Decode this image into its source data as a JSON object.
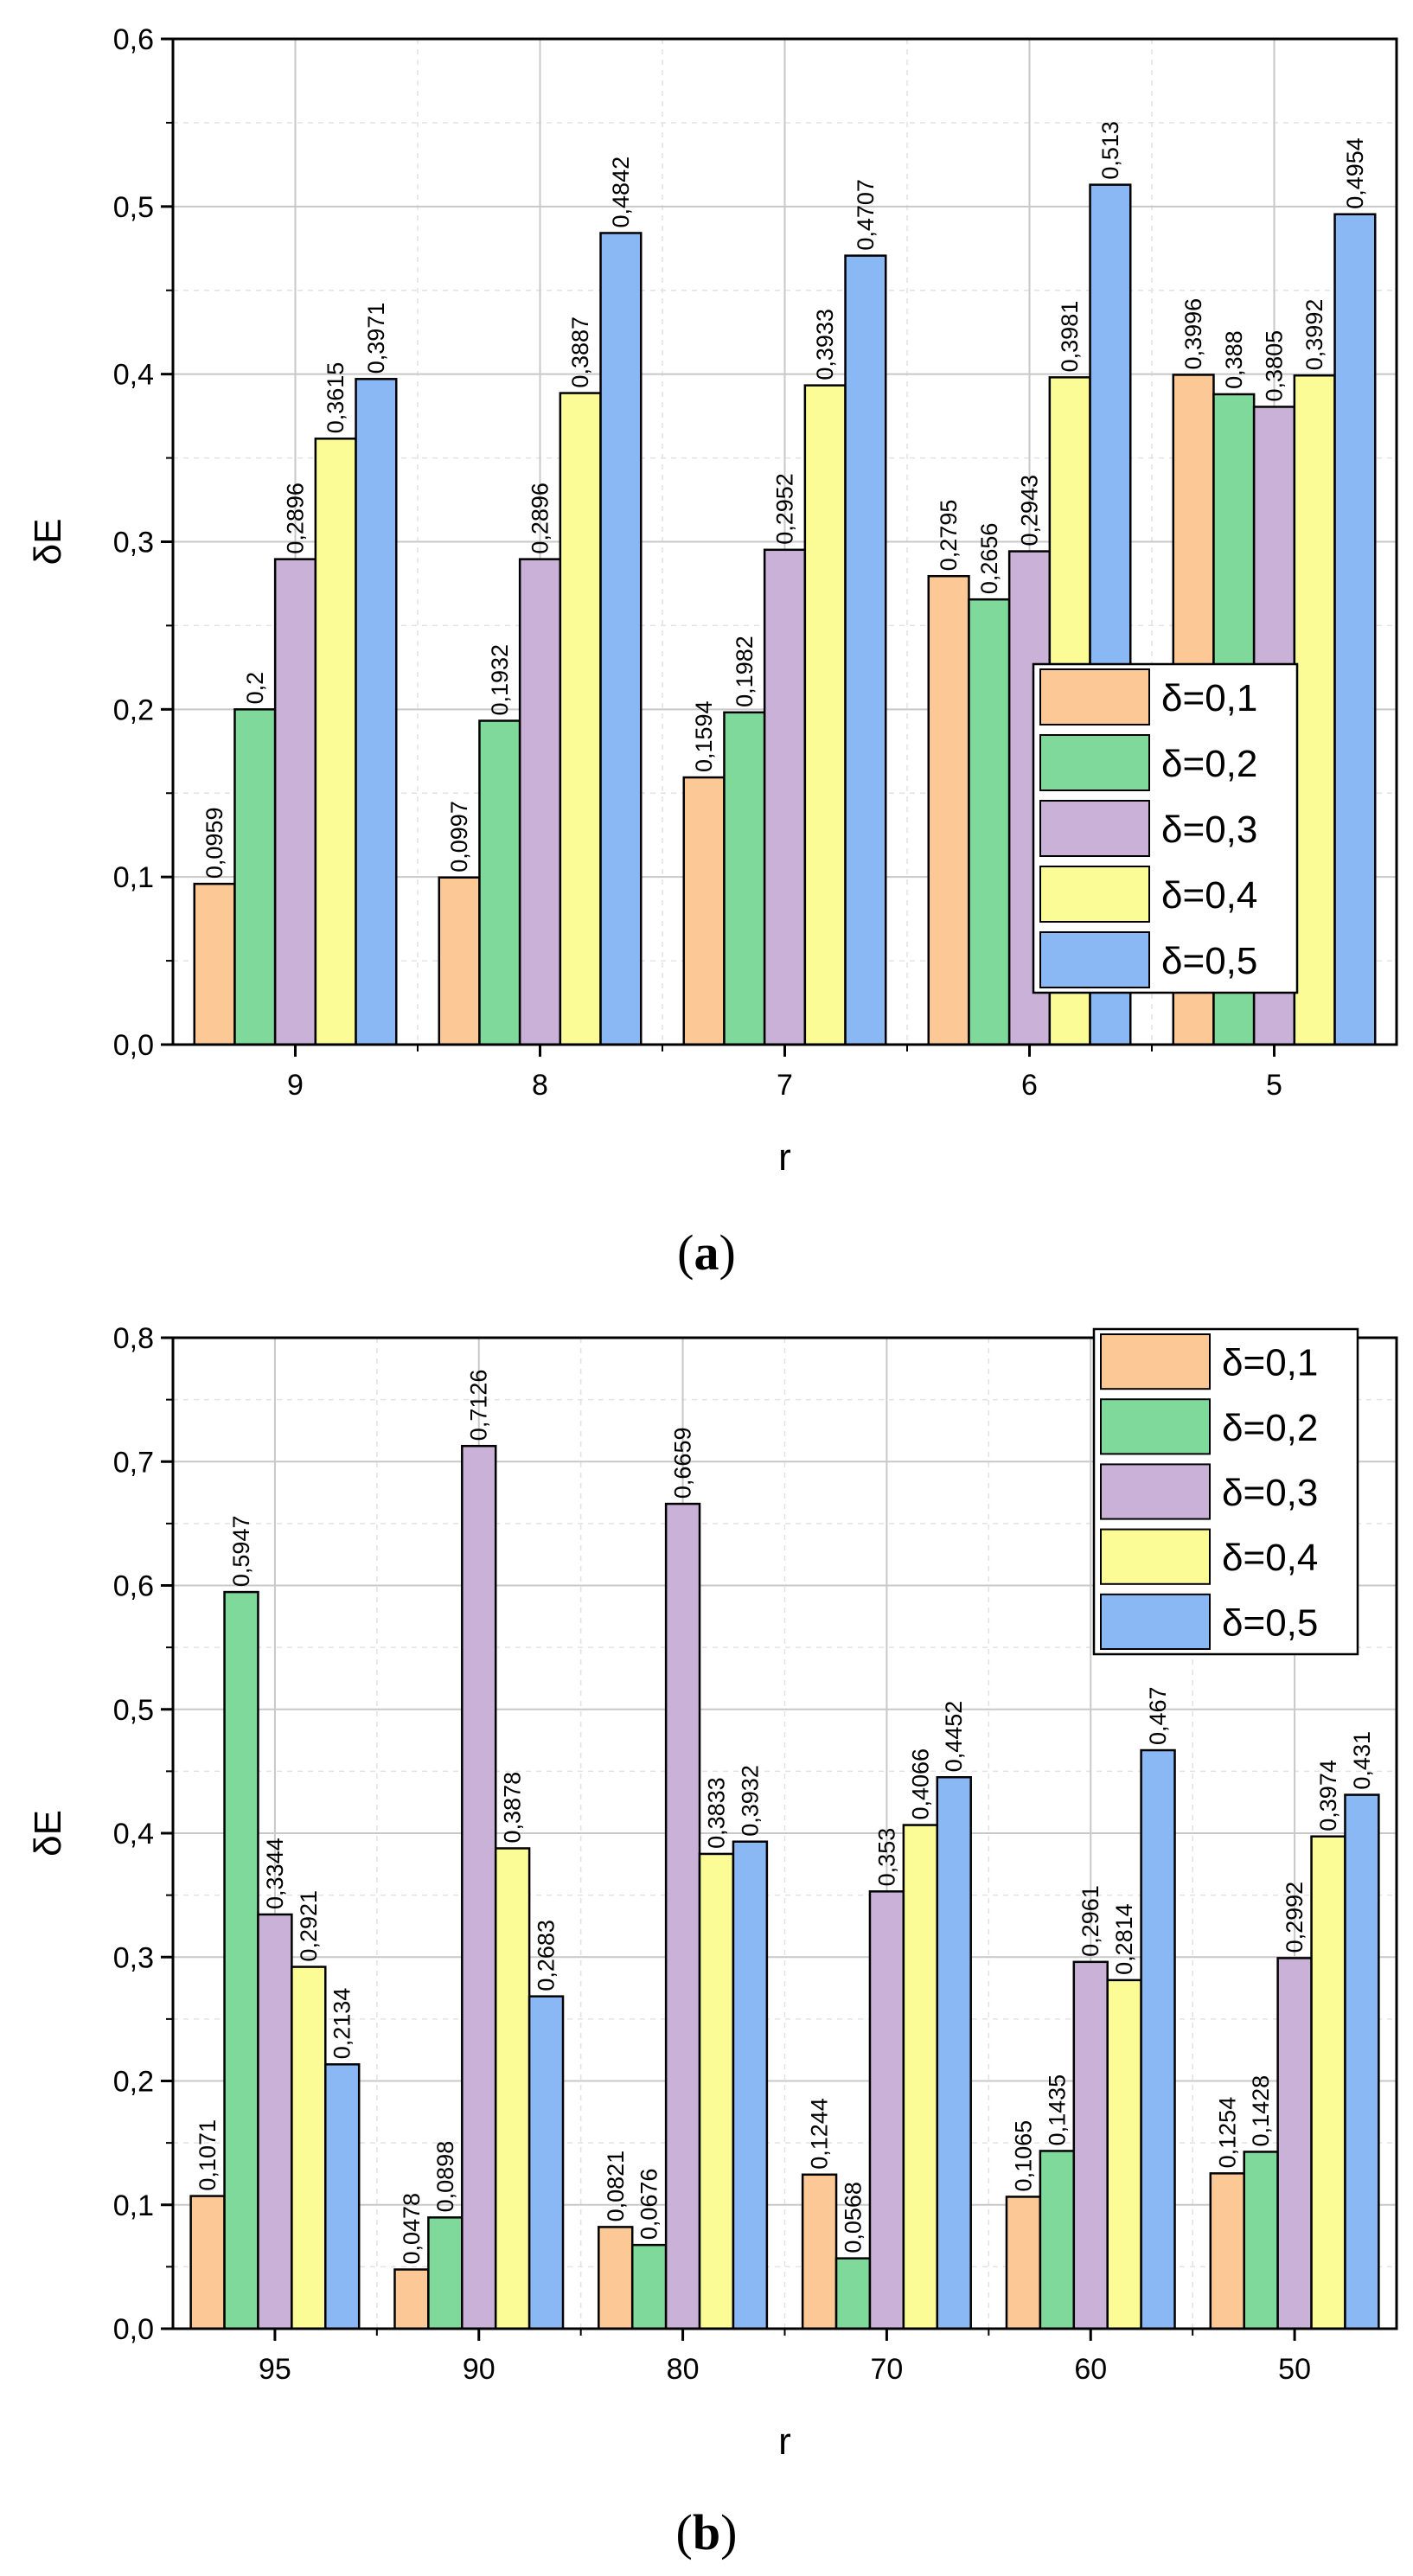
{
  "series_colors": [
    "#fcc896",
    "#7ed99a",
    "#c9b1d8",
    "#fcfc96",
    "#89b8f5"
  ],
  "chart_data": [
    {
      "type": "bar",
      "panel_label": "a",
      "xlabel": "r",
      "ylabel": "δE",
      "ylim": [
        0,
        0.6
      ],
      "yticks": [
        "0,0",
        "0,1",
        "0,2",
        "0,3",
        "0,4",
        "0,5",
        "0,6"
      ],
      "categories": [
        "9",
        "8",
        "7",
        "6",
        "5"
      ],
      "legend_position": "middle-right",
      "series": [
        {
          "name": "δ=0,1",
          "values": [
            0.0959,
            0.0997,
            0.1594,
            0.2795,
            0.3996
          ],
          "labels": [
            "0,0959",
            "0,0997",
            "0,1594",
            "0,2795",
            "0,3996"
          ]
        },
        {
          "name": "δ=0,2",
          "values": [
            0.2,
            0.1932,
            0.1982,
            0.2656,
            0.388
          ],
          "labels": [
            "0,2",
            "0,1932",
            "0,1982",
            "0,2656",
            "0,388"
          ]
        },
        {
          "name": "δ=0,3",
          "values": [
            0.2896,
            0.2896,
            0.2952,
            0.2943,
            0.3805
          ],
          "labels": [
            "0,2896",
            "0,2896",
            "0,2952",
            "0,2943",
            "0,3805"
          ]
        },
        {
          "name": "δ=0,4",
          "values": [
            0.3615,
            0.3887,
            0.3933,
            0.3981,
            0.3992
          ],
          "labels": [
            "0,3615",
            "0,3887",
            "0,3933",
            "0,3981",
            "0,3992"
          ]
        },
        {
          "name": "δ=0,5",
          "values": [
            0.3971,
            0.4842,
            0.4707,
            0.513,
            0.4954
          ],
          "labels": [
            "0,3971",
            "0,4842",
            "0,4707",
            "0,513",
            "0,4954"
          ]
        }
      ]
    },
    {
      "type": "bar",
      "panel_label": "b",
      "xlabel": "r",
      "ylabel": "δE",
      "ylim": [
        0,
        0.8
      ],
      "yticks": [
        "0,0",
        "0,1",
        "0,2",
        "0,3",
        "0,4",
        "0,5",
        "0,6",
        "0,7",
        "0,8"
      ],
      "categories": [
        "95",
        "90",
        "80",
        "70",
        "60",
        "50"
      ],
      "legend_position": "top-right",
      "series": [
        {
          "name": "δ=0,1",
          "values": [
            0.1071,
            0.0478,
            0.0821,
            0.1244,
            0.1065,
            0.1254
          ],
          "labels": [
            "0,1071",
            "0,0478",
            "0,0821",
            "0,1244",
            "0,1065",
            "0,1254"
          ]
        },
        {
          "name": "δ=0,2",
          "values": [
            0.5947,
            0.0898,
            0.0676,
            0.0568,
            0.1435,
            0.1428
          ],
          "labels": [
            "0,5947",
            "0,0898",
            "0,0676",
            "0,0568",
            "0,1435",
            "0,1428"
          ]
        },
        {
          "name": "δ=0,3",
          "values": [
            0.3344,
            0.7126,
            0.6659,
            0.353,
            0.2961,
            0.2992
          ],
          "labels": [
            "0,3344",
            "0,7126",
            "0,6659",
            "0,353",
            "0,2961",
            "0,2992"
          ]
        },
        {
          "name": "δ=0,4",
          "values": [
            0.2921,
            0.3878,
            0.3833,
            0.4066,
            0.2814,
            0.3974
          ],
          "labels": [
            "0,2921",
            "0,3878",
            "0,3833",
            "0,4066",
            "0,2814",
            "0,3974"
          ]
        },
        {
          "name": "δ=0,5",
          "values": [
            0.2134,
            0.2683,
            0.3932,
            0.4452,
            0.467,
            0.431
          ],
          "labels": [
            "0,2134",
            "0,2683",
            "0,3932",
            "0,4452",
            "0,467",
            "0,431"
          ]
        }
      ]
    }
  ]
}
